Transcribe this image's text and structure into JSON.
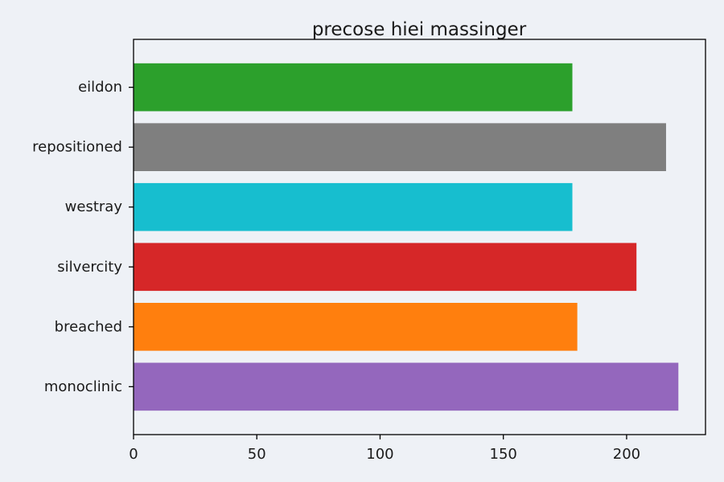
{
  "chart_data": {
    "type": "bar",
    "orientation": "horizontal",
    "title": "precose hiei massinger",
    "xlabel": "",
    "ylabel": "",
    "categories": [
      "monoclinic",
      "breached",
      "silvercity",
      "westray",
      "repositioned",
      "eildon"
    ],
    "values": [
      221,
      180,
      204,
      178,
      216,
      178
    ],
    "colors": [
      "#9467bd",
      "#ff7f0e",
      "#d62728",
      "#17becf",
      "#7f7f7f",
      "#2ca02c"
    ],
    "xlim": [
      0,
      232
    ],
    "xticks": [
      0,
      50,
      100,
      150,
      200
    ],
    "grid": false,
    "legend": "none"
  }
}
